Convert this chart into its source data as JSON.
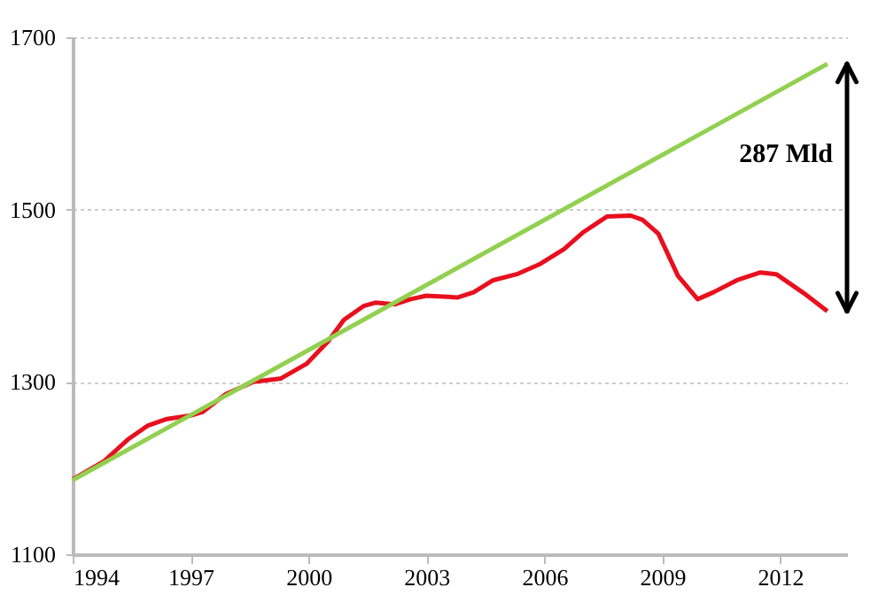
{
  "chart_data": {
    "type": "line",
    "xlim": [
      1994,
      2013.7
    ],
    "ylim": [
      1100,
      1700
    ],
    "xticks": [
      1994,
      1997,
      2000,
      2003,
      2006,
      2009,
      2012
    ],
    "yticks": [
      1100,
      1300,
      1500,
      1700
    ],
    "grid": "y",
    "marker": "none",
    "line_style": "solid",
    "annotations": [
      "287 Mld"
    ],
    "series": [
      {
        "color": "#e8101e",
        "x": [
          1994.0,
          1994.8,
          1995.4,
          1995.9,
          1996.4,
          1997.0,
          1997.3,
          1997.9,
          1998.6,
          1999.3,
          1999.95,
          2000.5,
          2000.9,
          2001.4,
          2001.7,
          2002.2,
          2002.6,
          2003.0,
          2003.8,
          2004.2,
          2004.7,
          2005.3,
          2005.9,
          2006.5,
          2007.0,
          2007.6,
          2008.2,
          2008.5,
          2008.9,
          2009.4,
          2009.9,
          2010.3,
          2010.9,
          2011.5,
          2011.9,
          2012.6,
          2013.2
        ],
        "values": [
          1187,
          1208,
          1233,
          1249,
          1257,
          1261,
          1265,
          1286,
          1300,
          1304,
          1321,
          1347,
          1372,
          1388,
          1392,
          1390,
          1396,
          1400,
          1398,
          1404,
          1418,
          1425,
          1437,
          1454,
          1474,
          1492,
          1493,
          1488,
          1472,
          1423,
          1396,
          1404,
          1418,
          1427,
          1425,
          1403,
          1382
        ]
      },
      {
        "color": "#92d050",
        "x": [
          1994.0,
          2013.2
        ],
        "values": [
          1186,
          1669
        ]
      }
    ]
  }
}
